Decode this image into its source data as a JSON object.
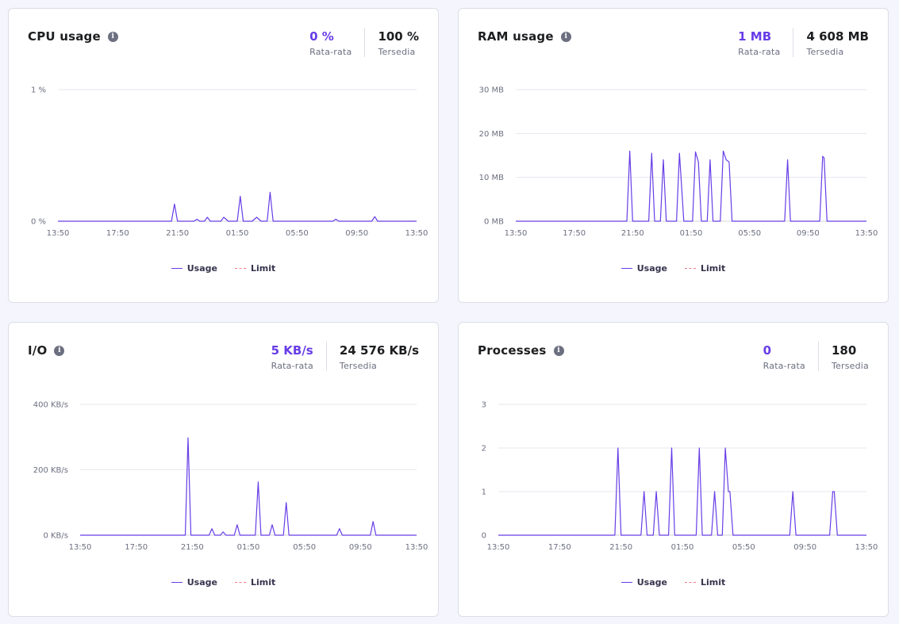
{
  "colors": {
    "usage": "#673de6",
    "limit": "#f4798b",
    "grid": "#e6e7ee"
  },
  "legend": {
    "usage_label": "Usage",
    "limit_label": "Limit"
  },
  "x_tick_labels": [
    "13:50",
    "17:50",
    "21:50",
    "01:50",
    "05:50",
    "09:50",
    "13:50"
  ],
  "panels": {
    "cpu": {
      "title": "CPU usage",
      "average_value": "0 %",
      "average_label": "Rata-rata",
      "available_value": "100 %",
      "available_label": "Tersedia"
    },
    "ram": {
      "title": "RAM usage",
      "average_value": "1 MB",
      "average_label": "Rata-rata",
      "available_value": "4 608 MB",
      "available_label": "Tersedia"
    },
    "io": {
      "title": "I/O",
      "average_value": "5 KB/s",
      "average_label": "Rata-rata",
      "available_value": "24 576 KB/s",
      "available_label": "Tersedia"
    },
    "proc": {
      "title": "Processes",
      "average_value": "0",
      "average_label": "Rata-rata",
      "available_value": "180",
      "available_label": "Tersedia"
    }
  },
  "chart_data": [
    {
      "type": "line",
      "panel": "cpu",
      "xlim": [
        0,
        24
      ],
      "ylim": [
        0,
        1
      ],
      "y_tick_values": [
        0,
        1
      ],
      "y_tick_labels": [
        "0 %",
        "1 %"
      ],
      "series": [
        {
          "name": "Usage",
          "x": [
            0,
            7.6,
            7.8,
            8.0,
            9.1,
            9.3,
            9.5,
            9.8,
            10.0,
            10.2,
            10.9,
            11.1,
            11.4,
            12.0,
            12.2,
            12.4,
            13.0,
            13.3,
            13.6,
            14.0,
            14.2,
            14.4,
            18.4,
            18.6,
            18.8,
            21.0,
            21.2,
            21.4,
            24
          ],
          "y": [
            0,
            0,
            0.13,
            0,
            0,
            0.015,
            0,
            0,
            0.03,
            0,
            0,
            0.03,
            0,
            0,
            0.19,
            0,
            0,
            0.03,
            0,
            0,
            0.22,
            0,
            0,
            0.015,
            0,
            0,
            0.035,
            0,
            0
          ]
        }
      ]
    },
    {
      "type": "line",
      "panel": "ram",
      "xlim": [
        0,
        24
      ],
      "ylim": [
        0,
        30
      ],
      "y_tick_values": [
        0,
        10,
        20,
        30
      ],
      "y_tick_labels": [
        "0 MB",
        "10 MB",
        "20 MB",
        "30 MB"
      ],
      "series": [
        {
          "name": "Usage",
          "x": [
            0,
            7.6,
            7.8,
            8.0,
            9.1,
            9.3,
            9.5,
            9.9,
            10.1,
            10.3,
            11.0,
            11.2,
            11.5,
            12.1,
            12.3,
            12.5,
            12.7,
            13.1,
            13.3,
            13.5,
            14.0,
            14.2,
            14.4,
            14.6,
            14.8,
            18.4,
            18.6,
            18.8,
            20.8,
            21.0,
            21.1,
            21.3,
            24
          ],
          "y": [
            0,
            0,
            16,
            0,
            0,
            15.5,
            0,
            0,
            14,
            0,
            0,
            15.5,
            0,
            0,
            15.8,
            13.5,
            0,
            0,
            14,
            0,
            0,
            16,
            14,
            13.5,
            0,
            0,
            14,
            0,
            0,
            14.8,
            14.4,
            0,
            0
          ]
        }
      ]
    },
    {
      "type": "line",
      "panel": "io",
      "xlim": [
        0,
        24
      ],
      "ylim": [
        0,
        400
      ],
      "y_tick_values": [
        0,
        200,
        400
      ],
      "y_tick_labels": [
        "0 KB/s",
        "200 KB/s",
        "400 KB/s"
      ],
      "series": [
        {
          "name": "Usage",
          "x": [
            0,
            7.5,
            7.7,
            7.9,
            9.2,
            9.4,
            9.6,
            10.0,
            10.2,
            10.4,
            11.0,
            11.2,
            11.4,
            12.5,
            12.7,
            12.9,
            13.5,
            13.7,
            13.9,
            14.5,
            14.7,
            14.9,
            18.3,
            18.5,
            18.7,
            20.7,
            20.9,
            21.1,
            24
          ],
          "y": [
            0,
            0,
            298,
            0,
            0,
            20,
            0,
            0,
            10,
            0,
            0,
            32,
            0,
            0,
            163,
            0,
            0,
            32,
            0,
            0,
            100,
            0,
            0,
            20,
            0,
            0,
            42,
            0,
            0
          ]
        }
      ]
    },
    {
      "type": "line",
      "panel": "proc",
      "xlim": [
        0,
        24
      ],
      "ylim": [
        0,
        3
      ],
      "y_tick_values": [
        0,
        1,
        2,
        3
      ],
      "y_tick_labels": [
        "0",
        "1",
        "2",
        "3"
      ],
      "series": [
        {
          "name": "Usage",
          "x": [
            0,
            7.6,
            7.8,
            8.0,
            9.3,
            9.5,
            9.7,
            10.1,
            10.3,
            10.5,
            11.1,
            11.3,
            11.5,
            12.9,
            13.1,
            13.3,
            13.9,
            14.1,
            14.3,
            14.6,
            14.8,
            15.0,
            15.1,
            15.3,
            19.0,
            19.2,
            19.4,
            21.6,
            21.8,
            21.9,
            22.1,
            24
          ],
          "y": [
            0,
            0,
            2,
            0,
            0,
            1,
            0,
            0,
            1,
            0,
            0,
            2,
            0,
            0,
            2,
            0,
            0,
            1,
            0,
            0,
            2,
            1,
            1,
            0,
            0,
            1,
            0,
            0,
            1,
            1,
            0,
            0
          ]
        }
      ]
    }
  ]
}
